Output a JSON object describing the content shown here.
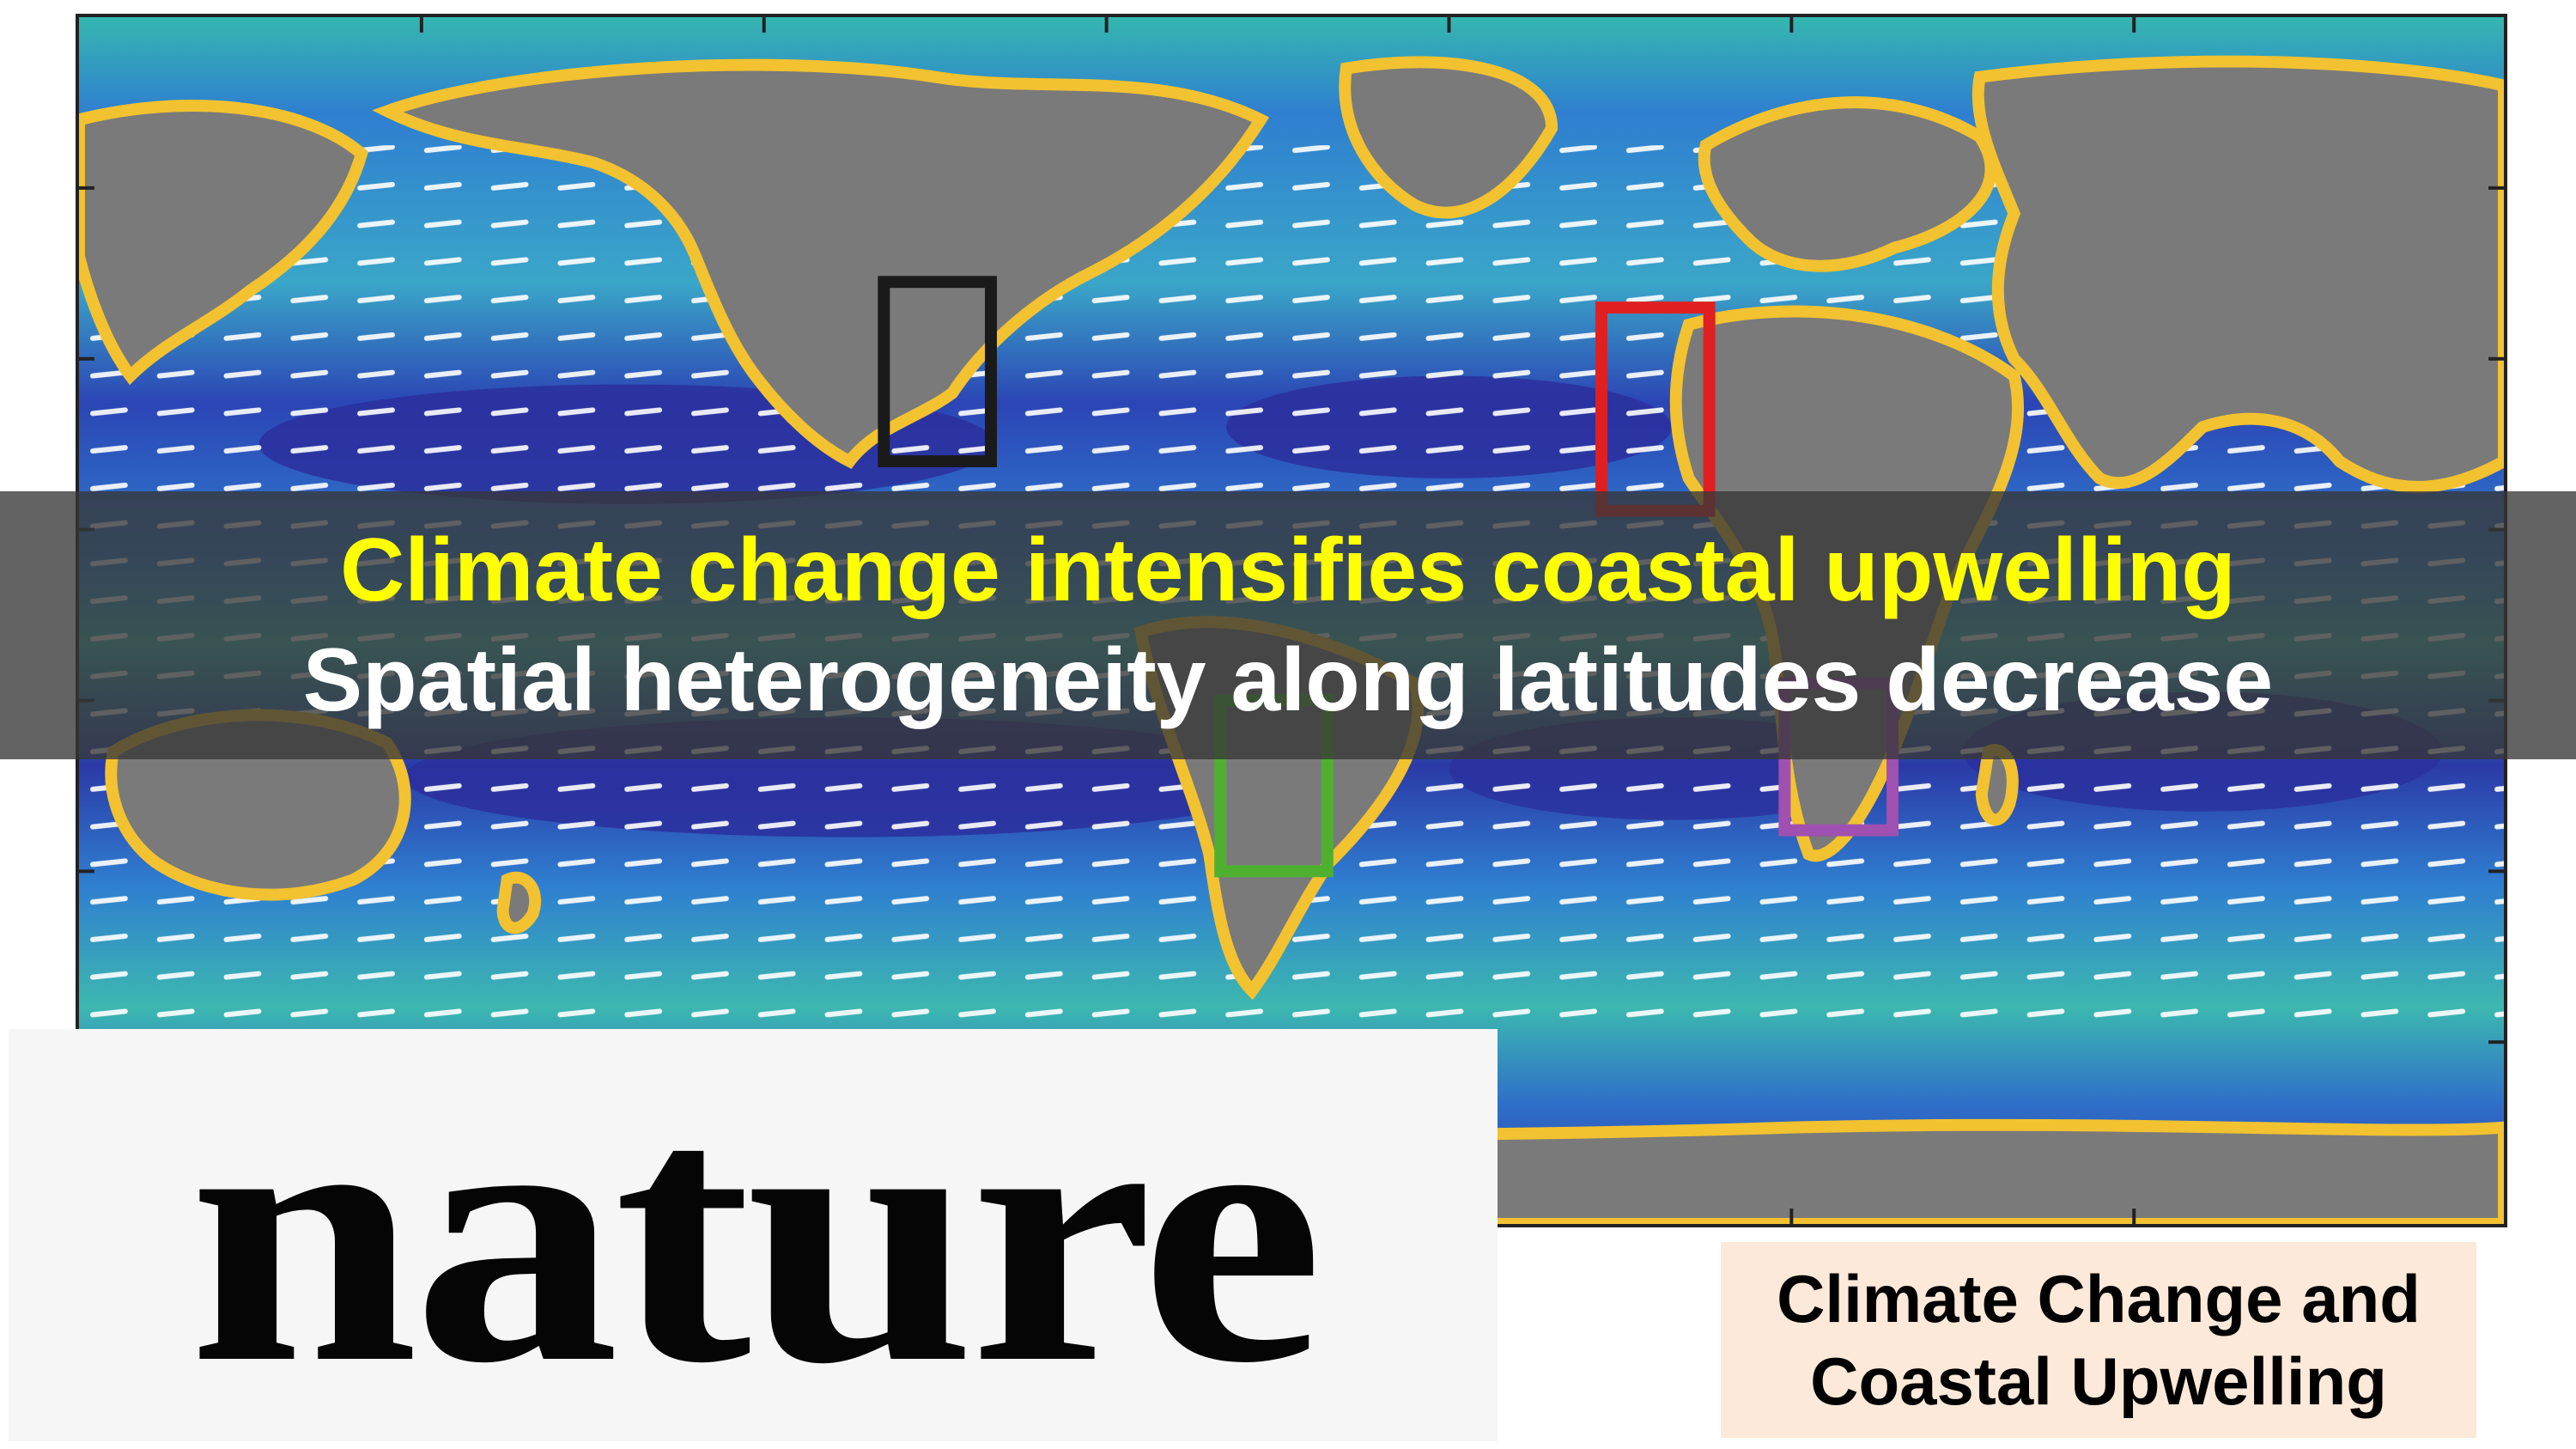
{
  "map": {
    "background": "upwelling-intensity-colormap",
    "colors": {
      "land": "#7a7a7a",
      "deep_blue": "#2b2f9e",
      "mid_blue": "#2f7fd0",
      "teal": "#35b7b0",
      "green": "#8fd07a",
      "yellow": "#f2c230",
      "wind_arrows": "#ffffff"
    },
    "regions": [
      {
        "name": "california-current",
        "color": "#1a1a1a"
      },
      {
        "name": "canary-current",
        "color": "#e02020"
      },
      {
        "name": "humboldt-current",
        "color": "#4fb030"
      },
      {
        "name": "benguela-current",
        "color": "#a050b0"
      }
    ]
  },
  "banner": {
    "headline": "Climate change intensifies coastal upwelling",
    "subhead": "Spatial heterogeneity along latitudes decrease"
  },
  "journal": {
    "name": "nature"
  },
  "topic": {
    "line1": "Climate Change and",
    "line2": "Coastal Upwelling"
  }
}
